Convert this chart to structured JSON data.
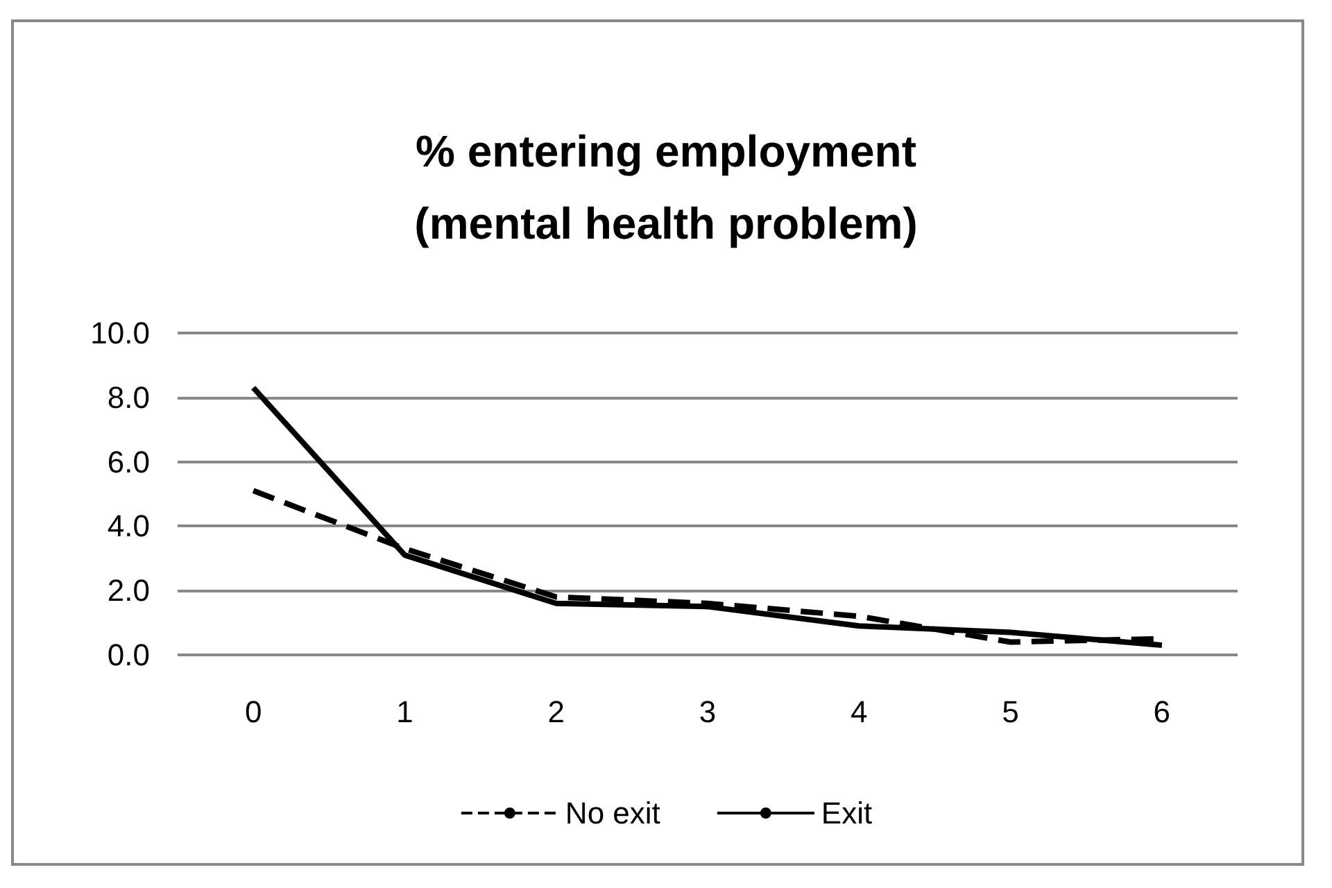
{
  "chart_data": {
    "type": "line",
    "title": "% entering employment\n(mental health problem)",
    "categories": [
      "0",
      "1",
      "2",
      "3",
      "4",
      "5",
      "6"
    ],
    "series": [
      {
        "name": "No exit",
        "color": "#000000",
        "line_style": "dashed",
        "values": [
          5.1,
          3.3,
          1.8,
          1.6,
          1.2,
          0.4,
          0.5
        ]
      },
      {
        "name": "Exit",
        "color": "#000000",
        "line_style": "solid",
        "values": [
          8.3,
          3.1,
          1.6,
          1.5,
          0.9,
          0.7,
          0.3
        ]
      }
    ],
    "ylim": [
      0,
      10
    ],
    "yticks": [
      {
        "value": 0,
        "label": "0.0"
      },
      {
        "value": 2,
        "label": "2.0"
      },
      {
        "value": 4,
        "label": "4.0"
      },
      {
        "value": 6,
        "label": "6.0"
      },
      {
        "value": 8,
        "label": "8.0"
      },
      {
        "value": 10,
        "label": "10.0"
      }
    ],
    "grid": "y",
    "legend": "bottom",
    "marker": "none"
  }
}
